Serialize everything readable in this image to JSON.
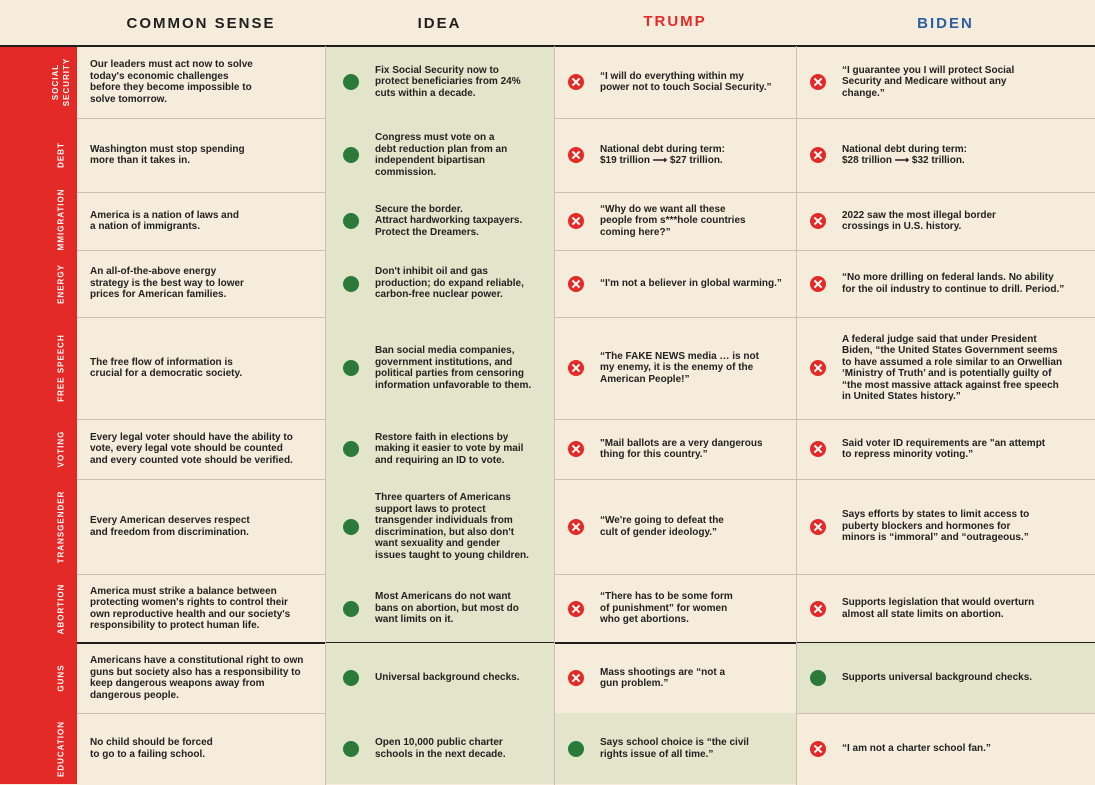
{
  "headers": {
    "common_sense": "COMMON SENSE",
    "idea": "IDEA",
    "trump": "TRUMP",
    "biden": "BIDEN"
  },
  "colors": {
    "label_bg": "#e42a27",
    "page_bg": "#f6ecdc",
    "highlight_bg": "#e3e5cb",
    "trump": "#e42a27",
    "biden": "#2b5fa0",
    "check": "#2c7a3a",
    "cross": "#e42a27"
  },
  "icons": {
    "yes": "check-circle-icon",
    "no": "x-circle-icon"
  },
  "rows": [
    {
      "topic": "SOCIAL\nSECURITY",
      "common_sense": "Our leaders must act now to solve\ntoday's economic challenges\nbefore they become impossible to\nsolve tomorrow.",
      "idea": "Fix Social Security now to\nprotect beneficiaries from 24%\ncuts within a decade.",
      "trump": "“I will do everything within my\npower not to touch Social Security.”",
      "trump_mark": "x",
      "biden": "“I guarantee you I will protect Social\nSecurity and Medicare without any\nchange.”",
      "biden_mark": "x"
    },
    {
      "topic": "DEBT",
      "common_sense": "Washington must stop spending\nmore than it takes in.",
      "idea": "Congress must vote on a\ndebt reduction plan from an\nindependent bipartisan\ncommission.",
      "trump": "National debt during term:\n$19 trillion ⟶ $27 trillion.",
      "trump_mark": "x",
      "biden": "National debt during term:\n$28 trillion ⟶ $32 trillion.",
      "biden_mark": "x"
    },
    {
      "topic": "IMMIGRATION",
      "common_sense": "America is a nation of laws and\na nation of immigrants.",
      "idea": "Secure the border.\nAttract hardworking taxpayers.\nProtect the Dreamers.",
      "trump": "“Why do we want all these\npeople from s***hole countries\ncoming here?”",
      "trump_mark": "x",
      "biden": "2022 saw the most illegal border\ncrossings in U.S. history.",
      "biden_mark": "x"
    },
    {
      "topic": "ENERGY",
      "common_sense": "An all-of-the-above energy\nstrategy is the best way to lower\nprices for American families.",
      "idea": "Don't inhibit oil and gas\nproduction; do expand reliable,\ncarbon-free nuclear power.",
      "trump": "“I'm not a believer in global warming.”",
      "trump_mark": "x",
      "biden": "“No more drilling on federal lands. No ability\nfor the oil industry to continue to drill. Period.”",
      "biden_mark": "x"
    },
    {
      "topic": "FREE SPEECH",
      "common_sense": "The free flow of information is\ncrucial for a democratic society.",
      "idea": "Ban social media companies,\ngovernment institutions, and\npolitical parties from censoring\ninformation unfavorable to them.",
      "trump": "“The FAKE NEWS media … is not\nmy enemy, it is the enemy of the\nAmerican People!”",
      "trump_mark": "x",
      "biden": "A federal judge said that under President\nBiden, “the United States Government seems\nto have assumed a role similar to an Orwellian\n‘Ministry of Truth’ and is potentially guilty of\n“the most massive attack against free speech\nin United States history.”",
      "biden_mark": "x"
    },
    {
      "topic": "VOTING",
      "common_sense": "Every legal voter should have the ability to\nvote, every legal vote should be counted\nand every counted vote should be verified.",
      "idea": "Restore faith in elections by\nmaking it easier to vote by mail\nand requiring an ID to vote.",
      "trump": "\"Mail ballots are a very dangerous\nthing for this country.”",
      "trump_mark": "x",
      "biden": "Said voter ID requirements are \"an attempt\nto repress minority voting.”",
      "biden_mark": "x"
    },
    {
      "topic": "TRANSGENDER",
      "common_sense": "Every American deserves respect\nand freedom from discrimination.",
      "idea": "Three quarters of Americans\nsupport laws to protect\ntransgender individuals from\ndiscrimination, but also don't\nwant sexuality and gender\nissues taught to young children.",
      "trump": "“We're going to defeat the\ncult of gender ideology.”",
      "trump_mark": "x",
      "biden": "Says efforts by states to limit access to\npuberty blockers and hormones for\nminors is “immoral” and “outrageous.”",
      "biden_mark": "x"
    },
    {
      "topic": "ABORTION",
      "common_sense": "America must strike a balance between\nprotecting women's rights to control their\nown reproductive health and our society's\nresponsibility to protect human life.",
      "idea": "Most Americans do not want\nbans on abortion, but most do\nwant limits on it.",
      "trump": "“There has to be some form\nof punishment” for women\nwho get abortions.",
      "trump_mark": "x",
      "biden": "Supports legislation that would overturn\nalmost all state limits on abortion.",
      "biden_mark": "x"
    },
    {
      "topic": "GUNS",
      "common_sense": "Americans have a constitutional right to own\nguns but society also has a responsibility to\nkeep dangerous weapons away from\ndangerous people.",
      "idea": "Universal background checks.",
      "trump": "Mass shootings are “not a\ngun problem.”",
      "trump_mark": "x",
      "biden": "Supports universal background checks.",
      "biden_mark": "check"
    },
    {
      "topic": "EDUCATION",
      "common_sense": "No child should be forced\nto go to a failing school.",
      "idea": "Open 10,000 public charter\nschools in the next decade.",
      "trump": "Says school choice is “the civil\nrights issue of all time.”",
      "trump_mark": "check",
      "biden": "“I am not a charter school fan.”",
      "biden_mark": "x"
    }
  ]
}
